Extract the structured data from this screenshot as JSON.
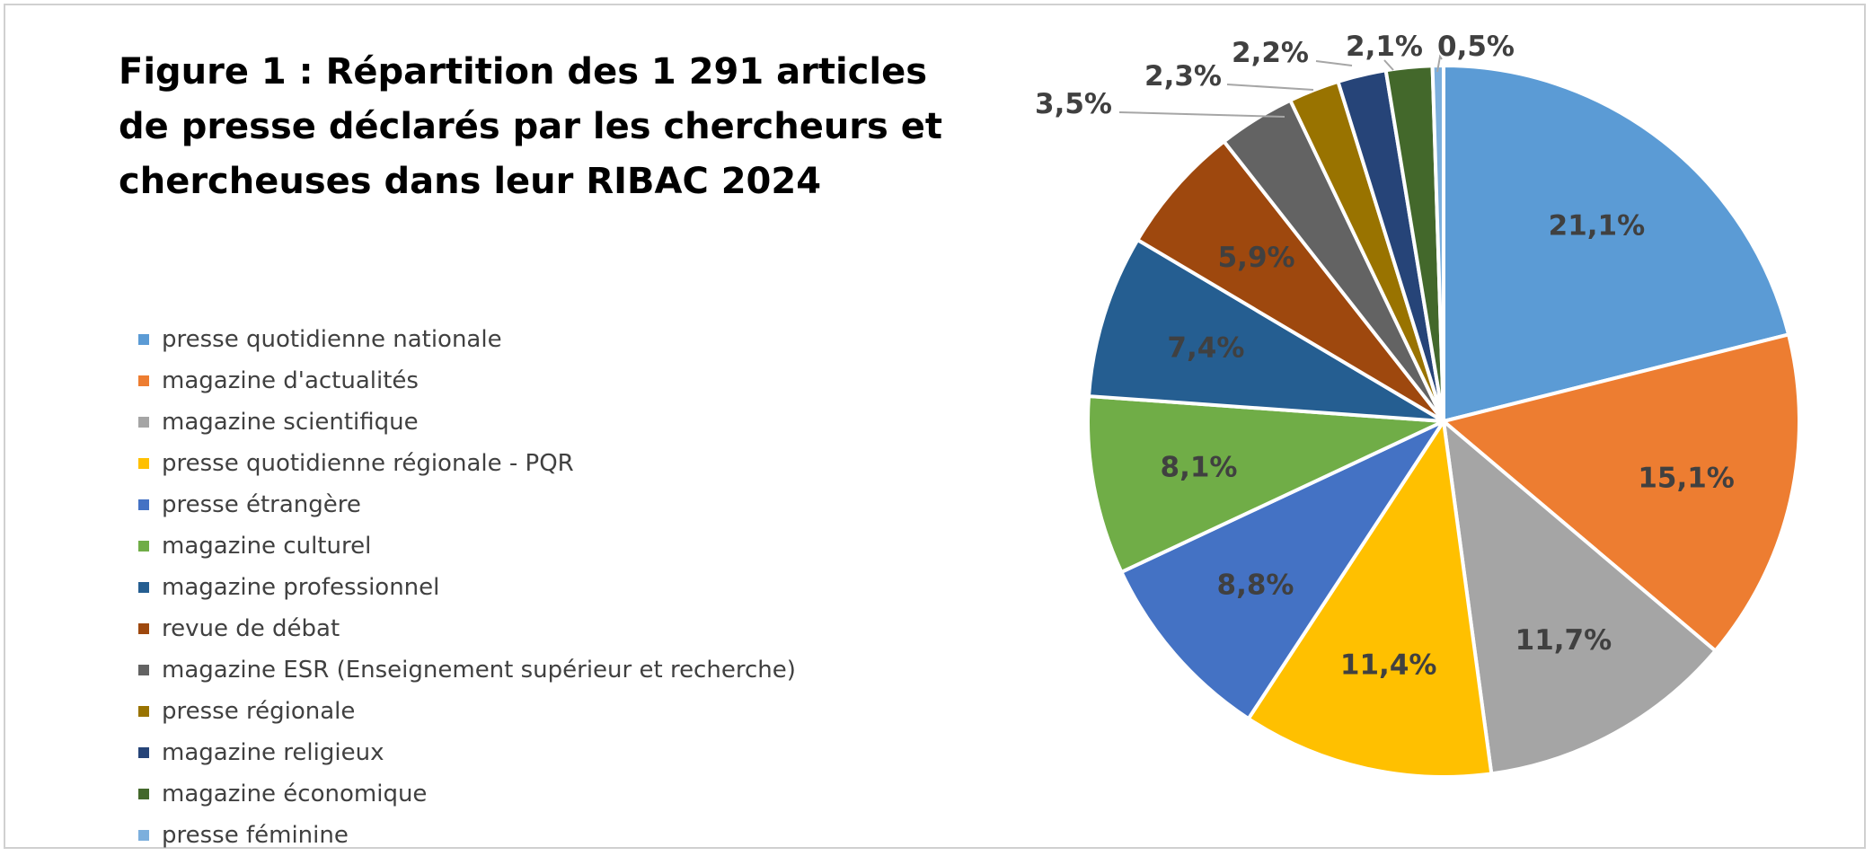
{
  "title_lines": [
    "Figure 1 : Répartition des 1 291 articles",
    "de presse déclarés par les chercheurs et",
    "chercheuses dans leur RIBAC 2024"
  ],
  "chart_data": {
    "type": "pie",
    "title": "Figure 1 : Répartition des 1 291 articles de presse déclarés par les chercheurs et chercheuses dans leur RIBAC 2024",
    "legend_position": "left",
    "categories": [
      "presse quotidienne nationale",
      "magazine d'actualités",
      "magazine scientifique",
      "presse quotidienne régionale - PQR",
      "presse étrangère",
      "magazine culturel",
      "magazine professionnel",
      "revue de débat",
      "magazine ESR (Enseignement supérieur et recherche)",
      "presse régionale",
      "magazine religieux",
      "magazine économique",
      "presse féminine"
    ],
    "values": [
      21.1,
      15.1,
      11.7,
      11.4,
      8.8,
      8.1,
      7.4,
      5.9,
      3.5,
      2.3,
      2.2,
      2.1,
      0.5
    ],
    "labels": [
      "21,1%",
      "15,1%",
      "11,7%",
      "11,4%",
      "8,8%",
      "8,1%",
      "7,4%",
      "5,9%",
      "3,5%",
      "2,3%",
      "2,2%",
      "2,1%",
      "0,5%"
    ],
    "colors": [
      "#5B9BD5",
      "#ED7D31",
      "#A5A5A5",
      "#FFC000",
      "#4472C4",
      "#70AD47",
      "#255E91",
      "#9E480E",
      "#636363",
      "#997300",
      "#264478",
      "#43682B",
      "#7CAFDD"
    ],
    "label_color": "#404040",
    "leader_color": "#A6A6A6"
  }
}
